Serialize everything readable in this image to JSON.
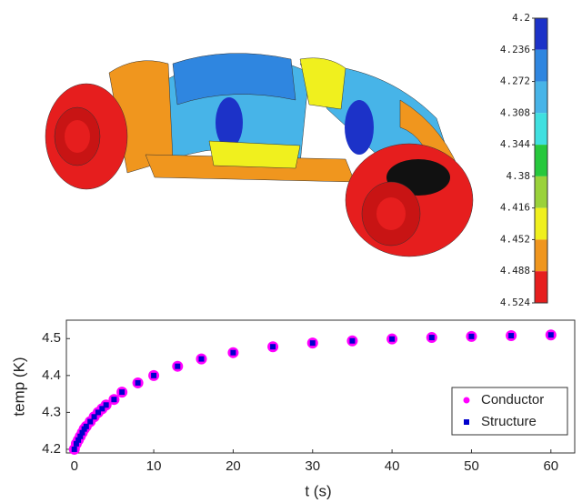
{
  "colorbar": {
    "lim": [
      4.2,
      4.524
    ],
    "ticks": [
      4.2,
      4.236,
      4.272,
      4.308,
      4.344,
      4.38,
      4.416,
      4.452,
      4.488,
      4.524
    ],
    "colors": [
      "#1c32c8",
      "#2f86e0",
      "#47b4e8",
      "#3fe0e0",
      "#26c83c",
      "#9ad23a",
      "#f0f01e",
      "#f0961e",
      "#e61e1e"
    ]
  },
  "chart_data": {
    "type": "scatter",
    "xlabel": "t (s)",
    "ylabel": "temp (K)",
    "x": [
      0,
      0.25,
      0.5,
      0.75,
      1,
      1.25,
      1.5,
      2,
      2.5,
      3,
      3.5,
      4,
      5,
      6,
      8,
      10,
      13,
      16,
      20,
      25,
      30,
      35,
      40,
      45,
      50,
      55,
      60
    ],
    "series": [
      {
        "name": "Conductor",
        "color": "#ff00ff",
        "marker": "circle",
        "values": [
          4.2,
          4.215,
          4.225,
          4.235,
          4.245,
          4.255,
          4.262,
          4.275,
          4.288,
          4.3,
          4.31,
          4.32,
          4.335,
          4.355,
          4.38,
          4.4,
          4.425,
          4.445,
          4.462,
          4.478,
          4.488,
          4.494,
          4.499,
          4.503,
          4.506,
          4.508,
          4.51
        ]
      },
      {
        "name": "Structure",
        "color": "#0000cc",
        "marker": "square",
        "values": [
          4.2,
          4.215,
          4.225,
          4.235,
          4.245,
          4.255,
          4.262,
          4.275,
          4.288,
          4.3,
          4.31,
          4.32,
          4.335,
          4.355,
          4.38,
          4.4,
          4.425,
          4.445,
          4.462,
          4.478,
          4.488,
          4.494,
          4.499,
          4.503,
          4.506,
          4.508,
          4.51
        ]
      }
    ],
    "xlim": [
      -1,
      63
    ],
    "xticks": [
      0,
      10,
      20,
      30,
      40,
      50,
      60
    ],
    "ylim": [
      4.19,
      4.55
    ],
    "yticks": [
      4.2,
      4.3,
      4.4,
      4.5
    ],
    "legend": "lower right"
  }
}
